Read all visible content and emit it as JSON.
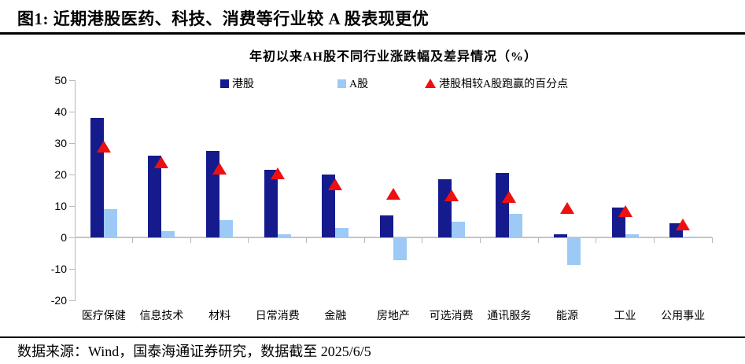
{
  "figure": {
    "title": "图1:  近期港股医药、科技、消费等行业较 A 股表现更优",
    "source": "数据来源：Wind，国泰海通证券研究，数据截至 2025/6/5"
  },
  "colors": {
    "hk_bar": "#151b8d",
    "a_bar": "#9cc9f5",
    "diff_marker": "#ee1010",
    "axis": "#b8b8b8"
  },
  "chart_data": {
    "type": "bar",
    "title": "年初以来AH股不同行业涨跌幅及差异情况（%）",
    "categories": [
      "医疗保健",
      "信息技术",
      "材料",
      "日常消费",
      "金融",
      "房地产",
      "可选消费",
      "通讯服务",
      "能源",
      "工业",
      "公用事业"
    ],
    "series": [
      {
        "name": "港股",
        "type": "bar",
        "color": "#151b8d",
        "values": [
          38,
          26,
          27.5,
          21.5,
          20,
          7,
          18.5,
          20.5,
          1,
          9.5,
          4.5
        ]
      },
      {
        "name": "A股",
        "type": "bar",
        "color": "#9cc9f5",
        "values": [
          9,
          2,
          5.5,
          1,
          3,
          -7,
          5,
          7.5,
          -8.5,
          1,
          0.3
        ]
      },
      {
        "name": "港股相较A股跑赢的百分点",
        "type": "triangle",
        "color": "#ee1010",
        "values": [
          29,
          24,
          22,
          20.5,
          17,
          14,
          13.5,
          13,
          9.5,
          8.5,
          4.2
        ]
      }
    ],
    "ylabel": "",
    "xlabel": "",
    "ylim": [
      -20,
      50
    ],
    "yticks": [
      50,
      40,
      30,
      20,
      10,
      0,
      -10,
      -20
    ],
    "grid": false,
    "legend_position": "top"
  }
}
